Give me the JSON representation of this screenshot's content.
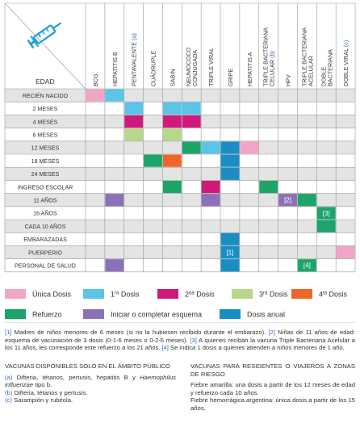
{
  "header": {
    "edad_label": "EDAD",
    "syringe_icon": "syringe-icon"
  },
  "columns": [
    {
      "label": "BCG",
      "ref": ""
    },
    {
      "label": "HEPATITIS B",
      "ref": ""
    },
    {
      "label": "PENTAVALENTE",
      "ref": "(a)"
    },
    {
      "label": "CUÁDRUPLE",
      "ref": ""
    },
    {
      "label": "SABIN",
      "ref": ""
    },
    {
      "label": "NEUMOCOCO CONJUGADA",
      "ref": ""
    },
    {
      "label": "TRIPLE VIRAL",
      "ref": ""
    },
    {
      "label": "GRIPE",
      "ref": ""
    },
    {
      "label": "HEPATITIS A",
      "ref": ""
    },
    {
      "label": "TRIPLE BACTERIANA CELULAR",
      "ref": "(b)"
    },
    {
      "label": "HPV",
      "ref": ""
    },
    {
      "label": "TRIPLE BACTERIANA ACELULAR",
      "ref": ""
    },
    {
      "label": "DOBLE BACTERIANA",
      "ref": ""
    },
    {
      "label": "DOBLE VIRAL",
      "ref": "(c)"
    }
  ],
  "rows": [
    {
      "label": "RECIÉN NACIDO",
      "cells": [
        {
          "c": 0,
          "t": "unica"
        },
        {
          "c": 1,
          "t": "d1"
        }
      ]
    },
    {
      "label": "2 MESES",
      "cells": [
        {
          "c": 2,
          "t": "d1"
        },
        {
          "c": 4,
          "t": "d1"
        },
        {
          "c": 5,
          "t": "d1"
        }
      ]
    },
    {
      "label": "4 MESES",
      "cells": [
        {
          "c": 2,
          "t": "d2"
        },
        {
          "c": 4,
          "t": "d2"
        },
        {
          "c": 5,
          "t": "d2"
        }
      ]
    },
    {
      "label": "6 MESES",
      "cells": [
        {
          "c": 2,
          "t": "d3"
        },
        {
          "c": 4,
          "t": "d3"
        }
      ]
    },
    {
      "label": "12 MESES",
      "cells": [
        {
          "c": 5,
          "t": "ref"
        },
        {
          "c": 6,
          "t": "d1"
        },
        {
          "c": 7,
          "t": "anual"
        },
        {
          "c": 8,
          "t": "unica"
        }
      ]
    },
    {
      "label": "18 MESES",
      "cells": [
        {
          "c": 3,
          "t": "ref"
        },
        {
          "c": 4,
          "t": "d4"
        },
        {
          "c": 7,
          "t": "anual"
        }
      ]
    },
    {
      "label": "24 MESES",
      "cells": [
        {
          "c": 7,
          "t": "anual"
        }
      ]
    },
    {
      "label": "INGRESO ESCOLAR",
      "cells": [
        {
          "c": 4,
          "t": "ref"
        },
        {
          "c": 6,
          "t": "d2"
        },
        {
          "c": 9,
          "t": "ref"
        }
      ]
    },
    {
      "label": "11 AÑOS",
      "cells": [
        {
          "c": 1,
          "t": "iniciar"
        },
        {
          "c": 6,
          "t": "iniciar"
        },
        {
          "c": 10,
          "t": "iniciar",
          "note": "[2]"
        },
        {
          "c": 11,
          "t": "ref"
        }
      ]
    },
    {
      "label": "16 AÑOS",
      "cells": [
        {
          "c": 12,
          "t": "ref",
          "note": "[3]"
        }
      ]
    },
    {
      "label": "CADA 10 AÑOS",
      "cells": [
        {
          "c": 12,
          "t": "ref"
        }
      ]
    },
    {
      "label": "EMBARAZADAS",
      "cells": [
        {
          "c": 7,
          "t": "anual"
        }
      ]
    },
    {
      "label": "PUERPERIO",
      "cells": [
        {
          "c": 7,
          "t": "anual",
          "note": "[1]"
        },
        {
          "c": 13,
          "t": "unica"
        }
      ]
    },
    {
      "label": "PERSONAL DE SALUD",
      "cells": [
        {
          "c": 1,
          "t": "iniciar"
        },
        {
          "c": 7,
          "t": "anual"
        },
        {
          "c": 11,
          "t": "ref",
          "note": "[4]"
        }
      ]
    }
  ],
  "colors": {
    "unica": "#f3a5c8",
    "d1": "#5bc4e8",
    "d2": "#d0197a",
    "d3": "#b7d88a",
    "d4": "#f0652a",
    "ref": "#1ca46a",
    "iniciar": "#8b72b8",
    "anual": "#1a8ec4",
    "header_accent": "#3a6fb5",
    "row_band": "#e4e4e4"
  },
  "legend": [
    {
      "key": "unica",
      "label": "Única Dosis"
    },
    {
      "key": "d1",
      "label": "1ra Dosis"
    },
    {
      "key": "d2",
      "label": "2da Dosis"
    },
    {
      "key": "d3",
      "label": "3ra Dosis"
    },
    {
      "key": "d4",
      "label": "4ta Dosis"
    },
    {
      "key": "ref",
      "label": "Refuerzo"
    },
    {
      "key": "iniciar",
      "label": "Iniciar o completar esquema"
    },
    {
      "key": "anual",
      "label": "Dosis anual"
    }
  ],
  "footnotes": {
    "n1": "[1]",
    "t1": " Madres de niños menores de 6 meses (si no la hubiesen recibido durante el embarazo). ",
    "n2": "[2]",
    "t2": " Niñas de 11 años de edad: esquema de vacunación de 3 dosis (0-1-6 meses o 0-2-6 meses). ",
    "n3": "[3]",
    "t3": " A quienes reciban la vacuna Triple Bacteriana Acelular a los 11 años, les corresponde este refuerzo a los 21 años. ",
    "n4": "[4]",
    "t4": " Se indica 1 dosis a quienes atienden a niños menores de 1 año."
  },
  "public_scope": {
    "title": "VACUNAS DISPONIBLES SÓLO EN EL ÁMBITO PÚBLICO",
    "a_ref": "(a)",
    "a_text1": " Difteria, tétanos, pertusis, hepatitis B y ",
    "a_italic": "Haemophilus influenzae",
    "a_text2": " tipo b.",
    "b_ref": "(b)",
    "b_text": " Difteria, tétanos y pertusis.",
    "c_ref": "(c)",
    "c_text": " Sarampión y rubéola."
  },
  "risk_zones": {
    "title": "VACUNAS PARA RESIDENTES O VIAJEROS A ZONAS DE RIESGO",
    "p1": "Fiebre amarilla: una dosis a partir de los 12 meses de edad y refuerzo cada 10 años.",
    "p2": "Fiebre hemorrágica argentina: única dosis a partir de los 15 años."
  }
}
